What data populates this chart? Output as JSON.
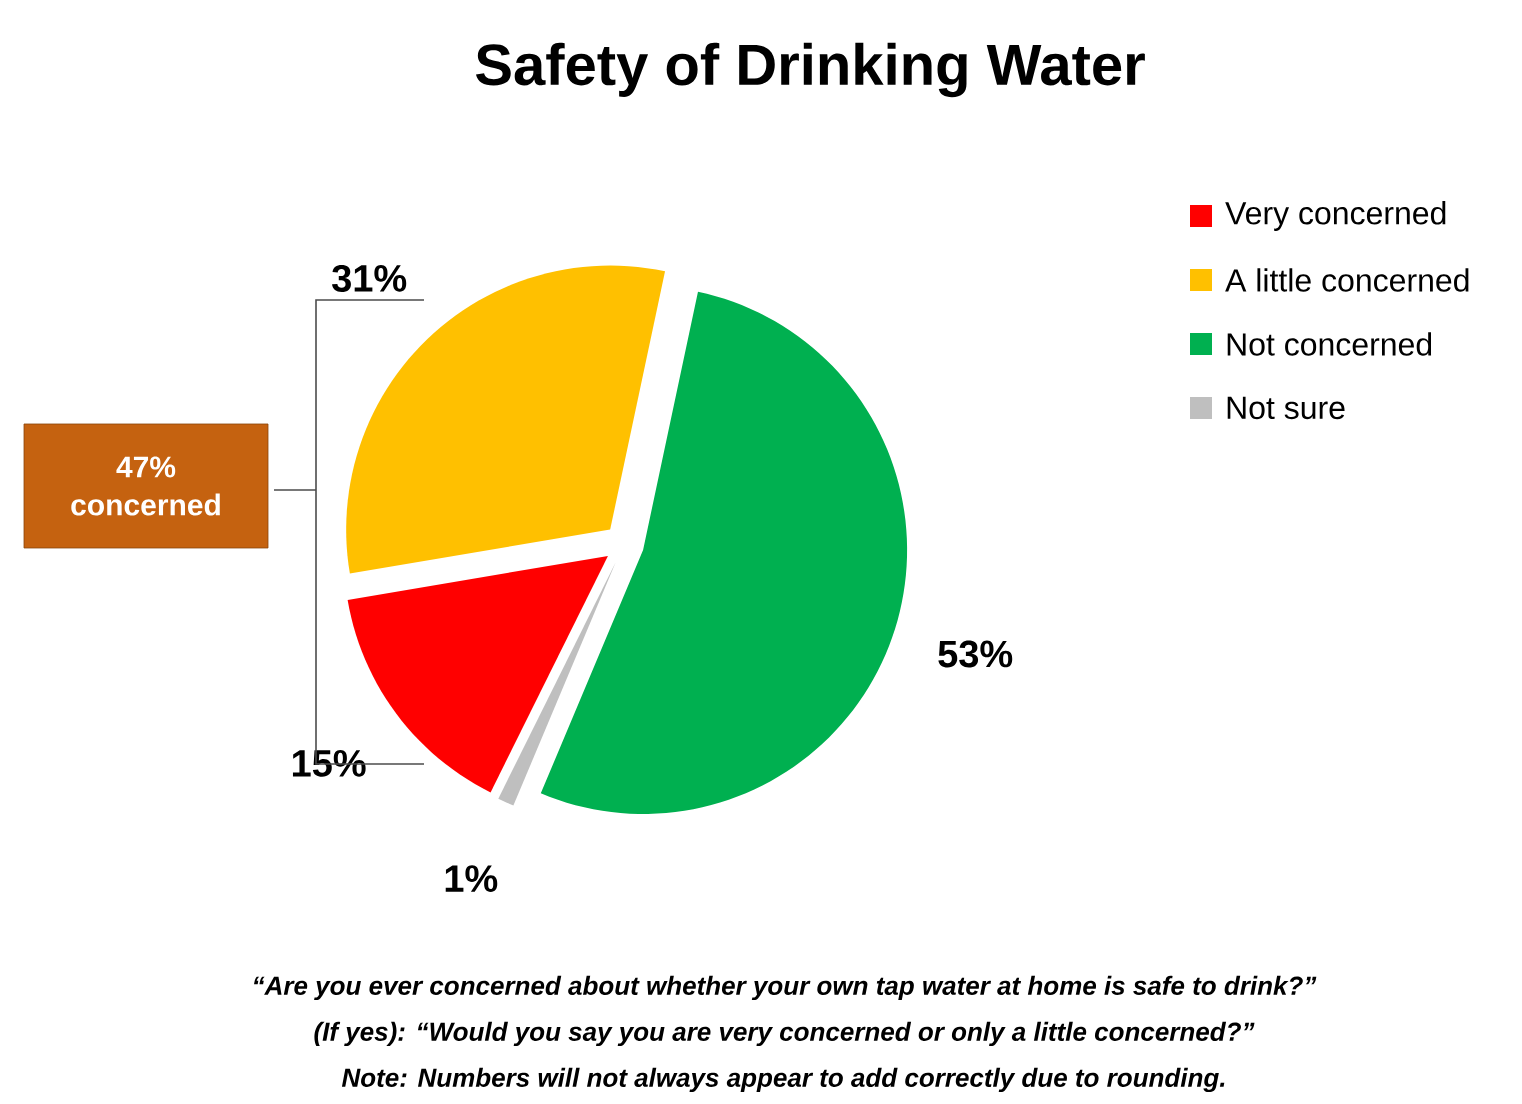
{
  "chart_data": {
    "type": "pie",
    "title": "Safety of Drinking Water",
    "categories": [
      "Very concerned",
      "A little concerned",
      "Not concerned",
      "Not sure"
    ],
    "values": [
      15,
      31,
      53,
      1
    ],
    "colors": [
      "#ff0000",
      "#ffc000",
      "#00b050",
      "#bfbfbf"
    ],
    "value_labels": [
      "15%",
      "31%",
      "53%",
      "1%"
    ],
    "legend": "top right",
    "annotations": [
      "47% concerned",
      "“Are you ever concerned about whether your own tap water at home is safe to drink?”",
      "(If yes): “Would you say you are very concerned or only a little concerned?”",
      "*Note: Numbers will not always appear to add correctly due to rounding.*"
    ]
  }
}
